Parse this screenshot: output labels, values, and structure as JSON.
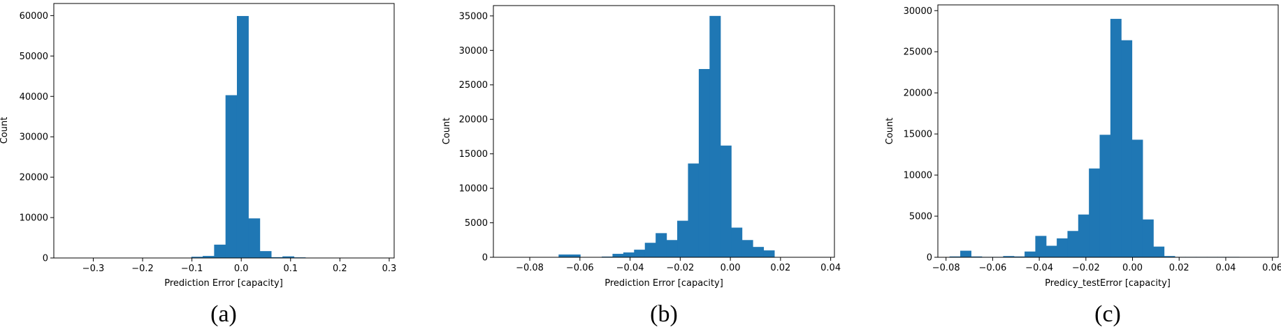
{
  "chart_data": [
    {
      "type": "bar",
      "subtype": "histogram",
      "caption": "(a)",
      "xlabel": "Prediction Error [capacity]",
      "ylabel": "Count",
      "xlim": [
        -0.38,
        0.31
      ],
      "ylim": [
        0,
        63000
      ],
      "xticks": [
        -0.3,
        -0.2,
        -0.1,
        0.0,
        0.1,
        0.2,
        0.3
      ],
      "xtick_labels": [
        "−0.3",
        "−0.2",
        "−0.1",
        "0.0",
        "0.1",
        "0.2",
        "0.3"
      ],
      "yticks": [
        0,
        10000,
        20000,
        30000,
        40000,
        50000,
        60000
      ],
      "ytick_labels": [
        "0",
        "10000",
        "20000",
        "30000",
        "40000",
        "50000",
        "60000"
      ],
      "bin_start": -0.286,
      "bin_width": 0.0231,
      "counts": [
        50,
        50,
        50,
        50,
        50,
        50,
        50,
        50,
        300,
        500,
        3300,
        40300,
        59900,
        9800,
        1700,
        200,
        400,
        150,
        50
      ]
    },
    {
      "type": "bar",
      "subtype": "histogram",
      "caption": "(b)",
      "xlabel": "Prediction Error [capacity]",
      "ylabel": "Count",
      "xlim": [
        -0.0945,
        0.0415
      ],
      "ylim": [
        0,
        36500
      ],
      "xticks": [
        -0.08,
        -0.06,
        -0.04,
        -0.02,
        0.0,
        0.02,
        0.04
      ],
      "xtick_labels": [
        "−0.08",
        "−0.06",
        "−0.04",
        "−0.02",
        "0.00",
        "0.02",
        "0.04"
      ],
      "yticks": [
        0,
        5000,
        10000,
        15000,
        20000,
        25000,
        30000,
        35000
      ],
      "ytick_labels": [
        "0",
        "5000",
        "10000",
        "15000",
        "20000",
        "25000",
        "30000",
        "35000"
      ],
      "bin_start": -0.09,
      "bin_width": 0.0043,
      "counts": [
        0,
        50,
        50,
        50,
        50,
        400,
        400,
        50,
        50,
        100,
        500,
        700,
        1100,
        2100,
        3500,
        2500,
        5300,
        13600,
        27300,
        35000,
        16200,
        4300,
        2500,
        1500,
        1000,
        50
      ]
    },
    {
      "type": "bar",
      "subtype": "histogram",
      "caption": "(c)",
      "xlabel": "Predicy_testError [capacity]",
      "ylabel": "Count",
      "xlim": [
        -0.0835,
        0.0625
      ],
      "ylim": [
        0,
        30700
      ],
      "xticks": [
        -0.08,
        -0.06,
        -0.04,
        -0.02,
        0.0,
        0.02,
        0.04,
        0.06
      ],
      "xtick_labels": [
        "−0.08",
        "−0.06",
        "−0.04",
        "−0.02",
        "0.00",
        "0.02",
        "0.04",
        "0.06"
      ],
      "yticks": [
        0,
        5000,
        10000,
        15000,
        20000,
        25000,
        30000
      ],
      "ytick_labels": [
        "0",
        "5000",
        "10000",
        "15000",
        "20000",
        "25000",
        "30000"
      ],
      "bin_start": -0.0785,
      "bin_width": 0.0046,
      "counts": [
        100,
        800,
        100,
        50,
        50,
        150,
        100,
        700,
        2600,
        1400,
        2300,
        3200,
        5200,
        10800,
        14900,
        29000,
        26400,
        14300,
        4600,
        1300,
        150,
        50,
        50,
        50,
        50,
        50,
        50
      ]
    }
  ]
}
